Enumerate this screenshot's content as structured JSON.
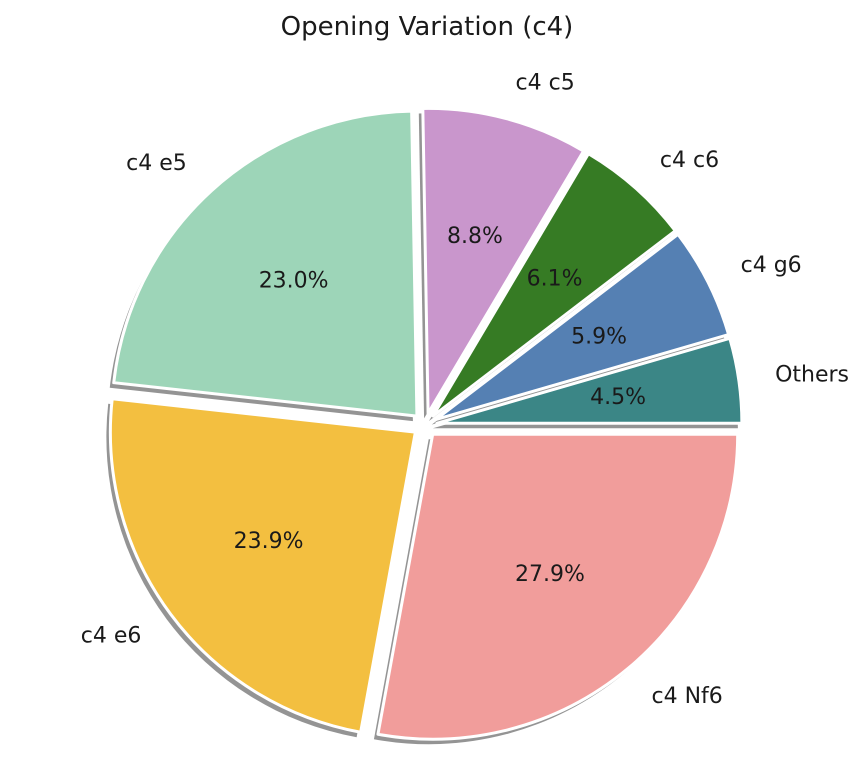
{
  "chart_data": {
    "type": "pie",
    "title": "Opening Variation (c4)",
    "start_angle_deg": 0,
    "direction": "counterclockwise",
    "shadow": true,
    "slices": [
      {
        "label": "Others",
        "value": 4.5,
        "pct_label": "4.5%",
        "color": "#3b8686"
      },
      {
        "label": "c4 g6",
        "value": 5.9,
        "pct_label": "5.9%",
        "color": "#5580b3"
      },
      {
        "label": "c4 c6",
        "value": 6.1,
        "pct_label": "6.1%",
        "color": "#367b24"
      },
      {
        "label": "c4 c5",
        "value": 8.8,
        "pct_label": "8.8%",
        "color": "#c996cc"
      },
      {
        "label": "c4 e5",
        "value": 23.0,
        "pct_label": "23.0%",
        "color": "#9dd5b8"
      },
      {
        "label": "c4 e6",
        "value": 23.9,
        "pct_label": "23.9%",
        "color": "#f3bf40"
      },
      {
        "label": "c4 Nf6",
        "value": 27.9,
        "pct_label": "27.9%",
        "color": "#f19d9b"
      }
    ]
  }
}
